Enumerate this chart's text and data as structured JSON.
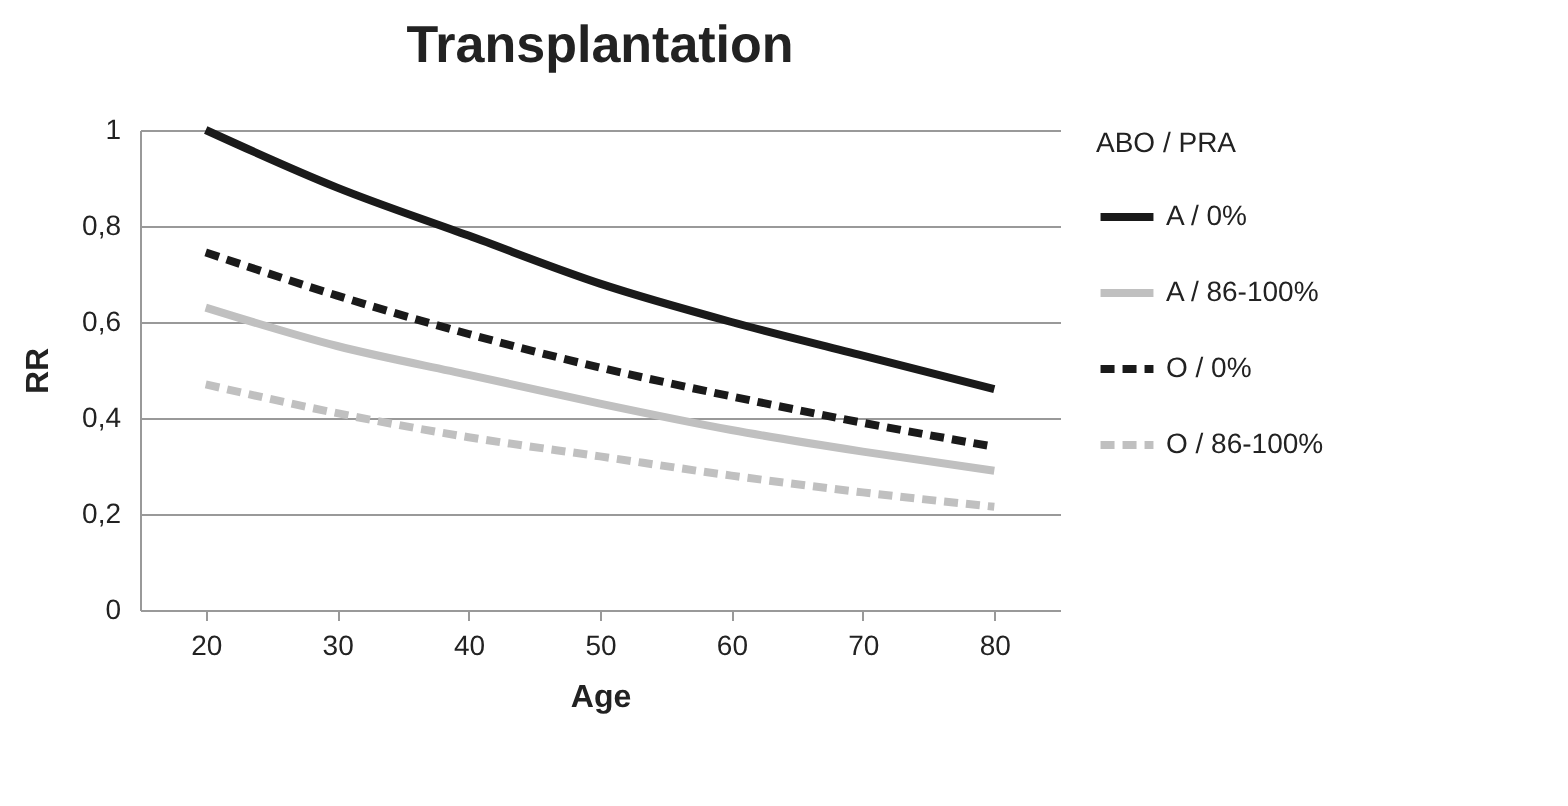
{
  "chart_data": {
    "type": "line",
    "title": "Transplantation",
    "xlabel": "Age",
    "ylabel": "RR",
    "legend_title": "ABO / PRA",
    "categories": [
      "20",
      "30",
      "40",
      "50",
      "60",
      "70",
      "80"
    ],
    "series": [
      {
        "name": "A / 0%",
        "color": "#1a1a1a",
        "line_style": "solid",
        "values": [
          1.0,
          0.88,
          0.78,
          0.68,
          0.6,
          0.53,
          0.46
        ]
      },
      {
        "name": "A / 86-100%",
        "color": "#c0c0c0",
        "line_style": "solid",
        "values": [
          0.63,
          0.55,
          0.49,
          0.43,
          0.375,
          0.33,
          0.29
        ]
      },
      {
        "name": "O / 0%",
        "color": "#1a1a1a",
        "line_style": "dashed",
        "values": [
          0.745,
          0.655,
          0.575,
          0.505,
          0.445,
          0.39,
          0.34
        ]
      },
      {
        "name": "O / 86-100%",
        "color": "#c0c0c0",
        "line_style": "dashed",
        "values": [
          0.47,
          0.41,
          0.36,
          0.32,
          0.28,
          0.245,
          0.215
        ]
      }
    ],
    "ylim": [
      0,
      1
    ],
    "yticks": [
      0,
      {
        "value": 0.2,
        "label": "0,2"
      },
      {
        "value": 0.4,
        "label": "0,4"
      },
      {
        "value": 0.6,
        "label": "0,6"
      },
      {
        "value": 0.8,
        "label": "0,8"
      },
      1
    ],
    "grid": "y",
    "legend": "right",
    "marker": "none"
  }
}
